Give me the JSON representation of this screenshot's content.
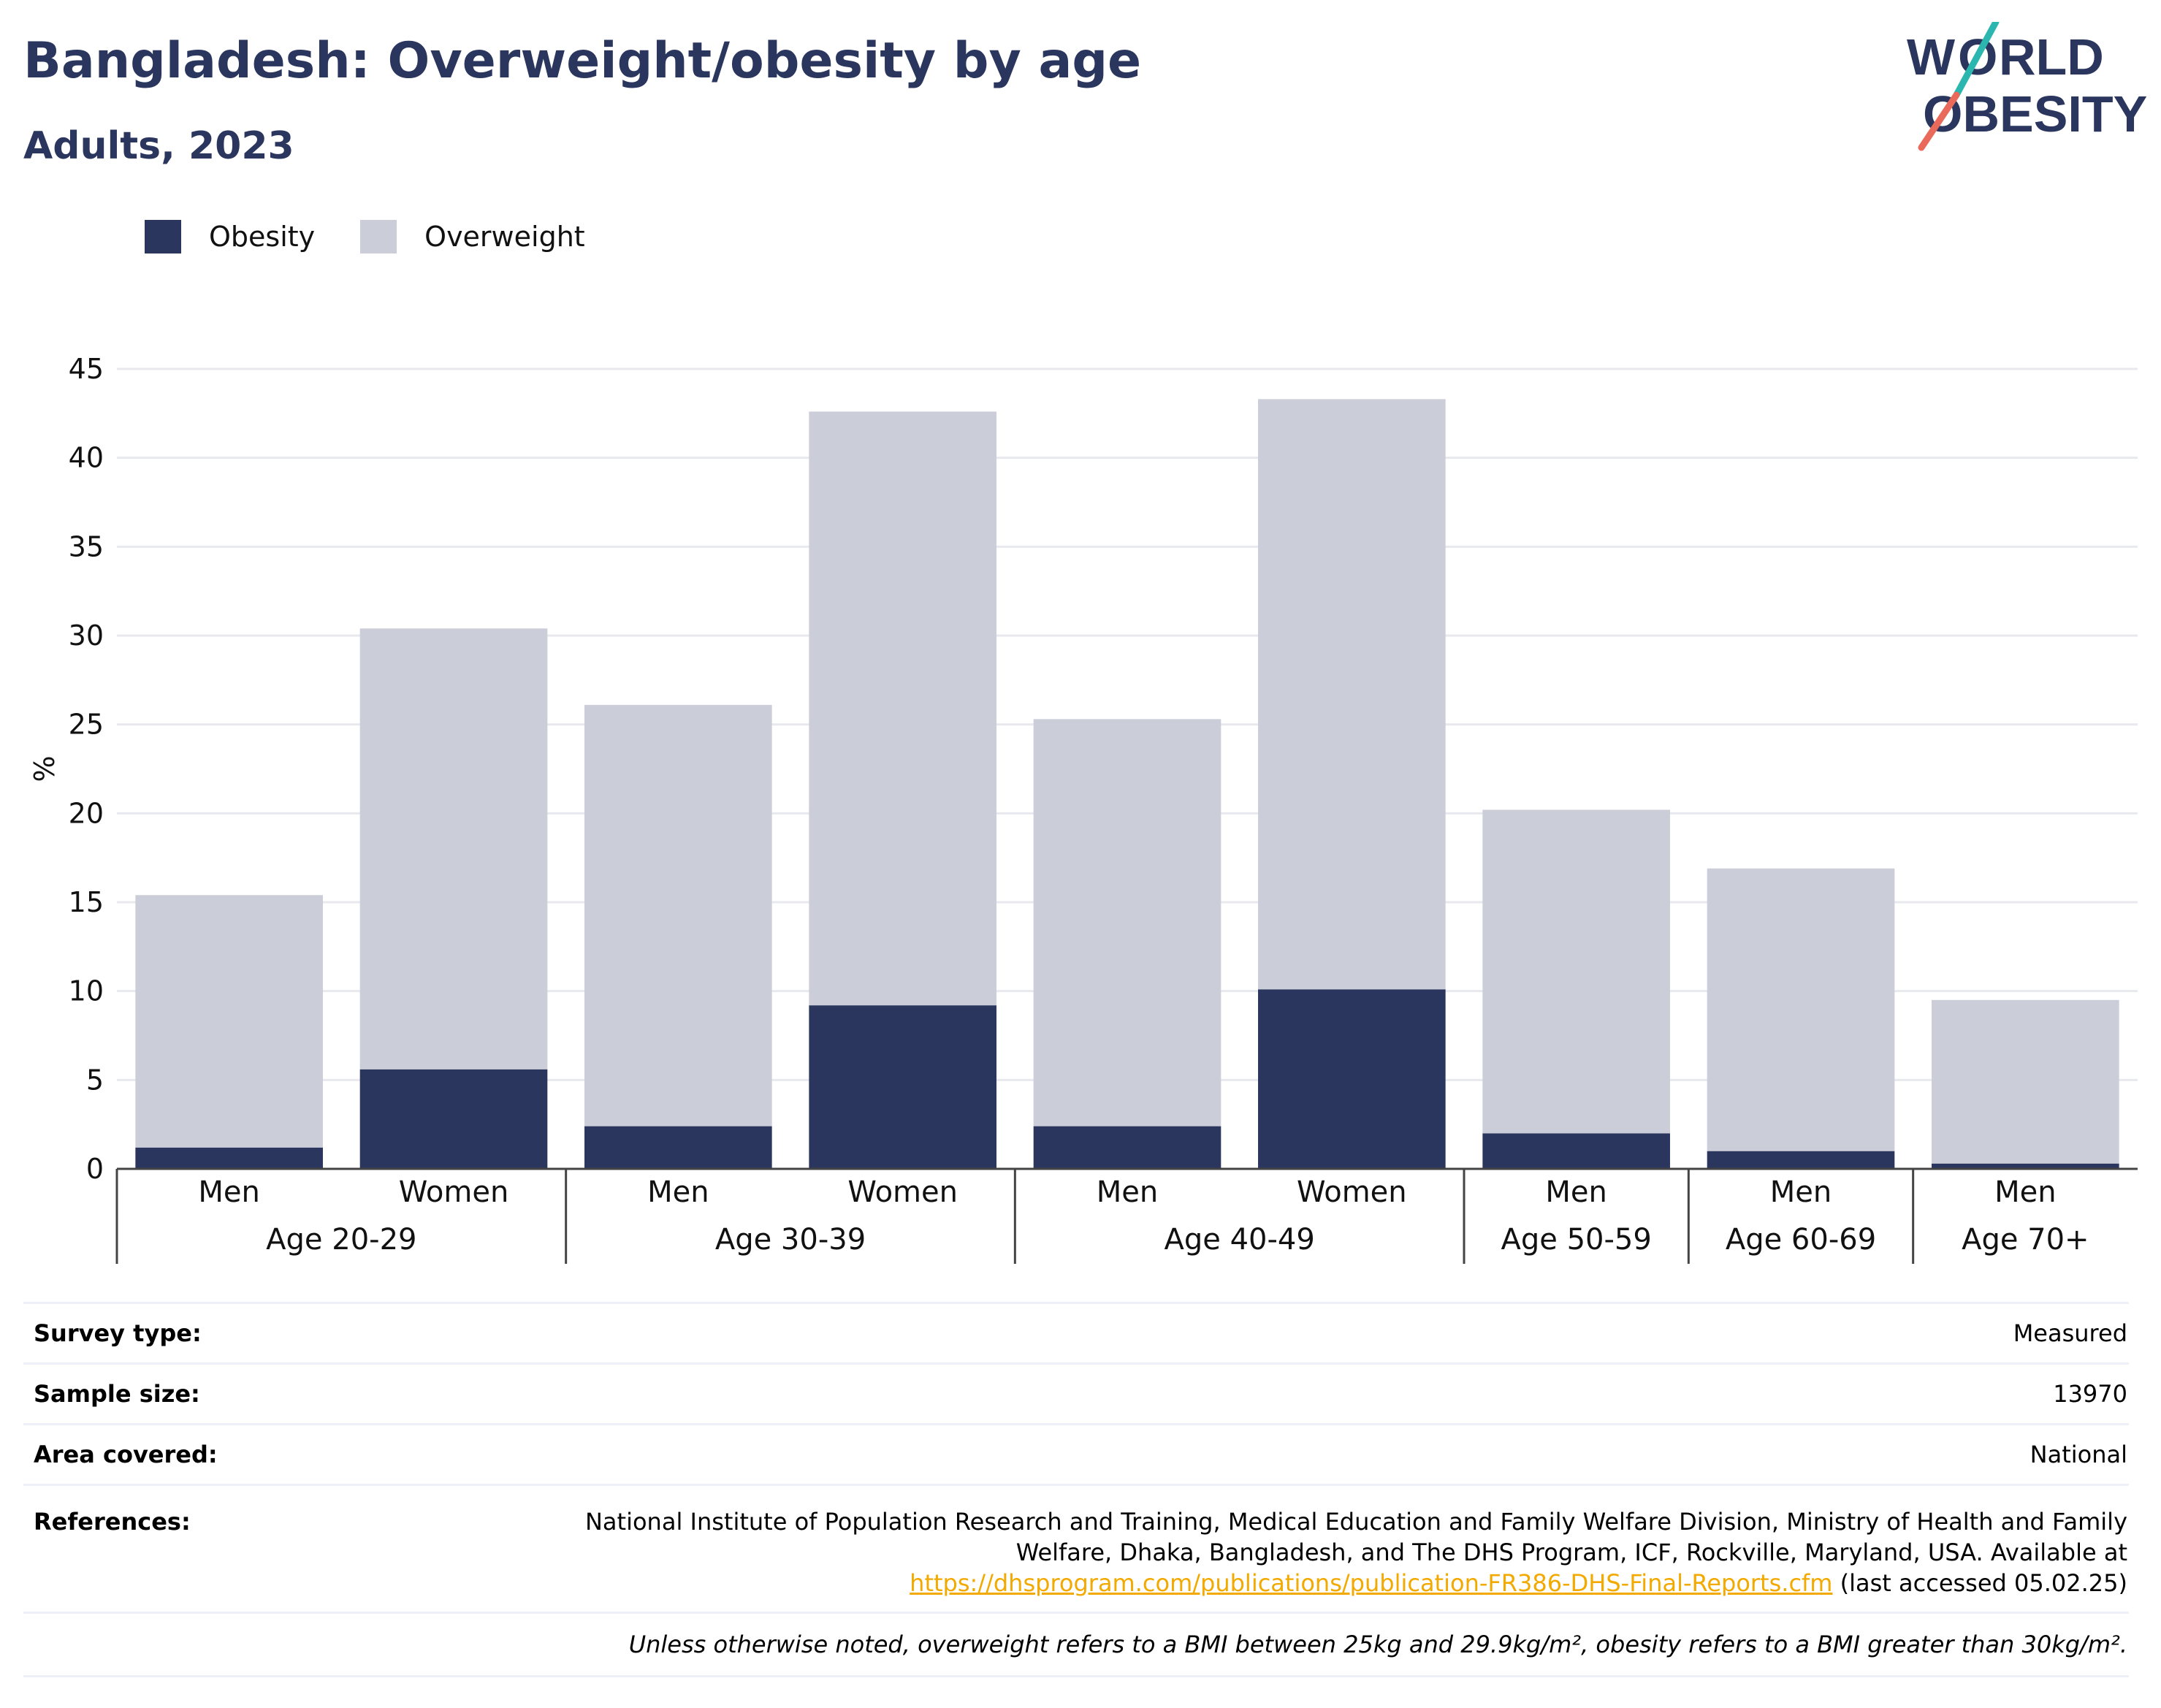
{
  "header": {
    "title": "Bangladesh: Overweight/obesity by age",
    "subtitle": "Adults, 2023"
  },
  "logo": {
    "line1": "WORLD",
    "line2": "OBESITY",
    "accent_teal": "#2bb6b0",
    "accent_coral": "#e9695a"
  },
  "colors": {
    "obesity": "#2b365f",
    "overweight": "#cbcdd8",
    "title": "#2b365f",
    "link": "#f2a900"
  },
  "chart_data": {
    "type": "bar",
    "stacked": true,
    "title": "Bangladesh: Overweight/obesity by age",
    "subtitle": "Adults, 2023",
    "ylabel": "%",
    "ylim": [
      0,
      45
    ],
    "yticks": [
      0,
      5,
      10,
      15,
      20,
      25,
      30,
      35,
      40,
      45
    ],
    "grid": true,
    "legend_position": "top-left",
    "categories": [
      "Men",
      "Women",
      "Men",
      "Women",
      "Men",
      "Women",
      "Men",
      "Men",
      "Men"
    ],
    "groups": [
      {
        "label": "Age 20-29",
        "count": 2
      },
      {
        "label": "Age 30-39",
        "count": 2
      },
      {
        "label": "Age 40-49",
        "count": 2
      },
      {
        "label": "Age 50-59",
        "count": 1
      },
      {
        "label": "Age 60-69",
        "count": 1
      },
      {
        "label": "Age 70+",
        "count": 1
      }
    ],
    "series": [
      {
        "name": "Obesity",
        "values": [
          1.2,
          5.6,
          2.4,
          9.2,
          2.4,
          10.1,
          2.0,
          1.0,
          0.3
        ]
      },
      {
        "name": "Overweight",
        "values": [
          14.2,
          24.8,
          23.7,
          33.4,
          22.9,
          33.2,
          18.2,
          15.9,
          9.2
        ]
      }
    ]
  },
  "info": {
    "survey_type_label": "Survey type:",
    "survey_type_value": "Measured",
    "sample_size_label": "Sample size:",
    "sample_size_value": "13970",
    "area_label": "Area covered:",
    "area_value": "National",
    "references_label": "References:",
    "references_line1": "National Institute of Population Research and Training, Medical Education and Family Welfare Division, Ministry of Health and Family",
    "references_line2": "Welfare, Dhaka, Bangladesh, and The DHS Program, ICF, Rockville, Maryland, USA. Available at",
    "references_link": "https://dhsprogram.com/publications/publication-FR386-DHS-Final-Reports.cfm",
    "references_suffix": " (last accessed 05.02.25)",
    "note": "Unless otherwise noted, overweight refers to a BMI between 25kg and 29.9kg/m², obesity refers to a BMI greater than 30kg/m²."
  }
}
